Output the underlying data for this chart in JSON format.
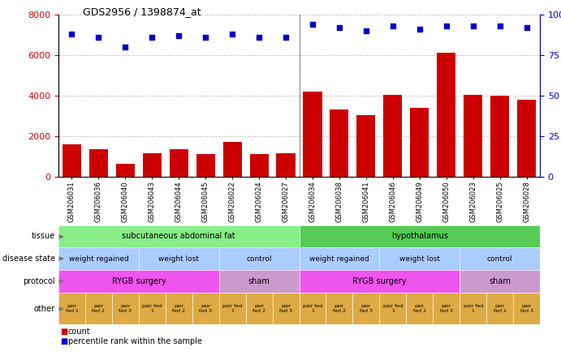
{
  "title": "GDS2956 / 1398874_at",
  "samples": [
    "GSM206031",
    "GSM206036",
    "GSM206040",
    "GSM206043",
    "GSM206044",
    "GSM206045",
    "GSM206022",
    "GSM206024",
    "GSM206027",
    "GSM206034",
    "GSM206038",
    "GSM206041",
    "GSM206046",
    "GSM206049",
    "GSM206050",
    "GSM206023",
    "GSM206025",
    "GSM206028"
  ],
  "counts": [
    1600,
    1350,
    650,
    1150,
    1350,
    1100,
    1700,
    1100,
    1150,
    4200,
    3300,
    3050,
    4050,
    3400,
    6100,
    4050,
    4000,
    3800
  ],
  "percentile": [
    88,
    86,
    80,
    86,
    87,
    86,
    88,
    86,
    86,
    94,
    92,
    90,
    93,
    91,
    93,
    93,
    93,
    92
  ],
  "bar_color": "#CC0000",
  "dot_color": "#0000CC",
  "ylim_left": [
    0,
    8000
  ],
  "ylim_right": [
    0,
    100
  ],
  "yticks_left": [
    0,
    2000,
    4000,
    6000,
    8000
  ],
  "yticks_right": [
    0,
    25,
    50,
    75,
    100
  ],
  "tissue_colors": [
    "#88EE88",
    "#55CC55"
  ],
  "disease_color": "#AACCFF",
  "protocol_color_rygb": "#EE55EE",
  "protocol_color_sham": "#CC99CC",
  "other_color": "#DDAA44",
  "row_labels": [
    "tissue",
    "disease state",
    "protocol",
    "other"
  ],
  "background_color": "#FFFFFF"
}
